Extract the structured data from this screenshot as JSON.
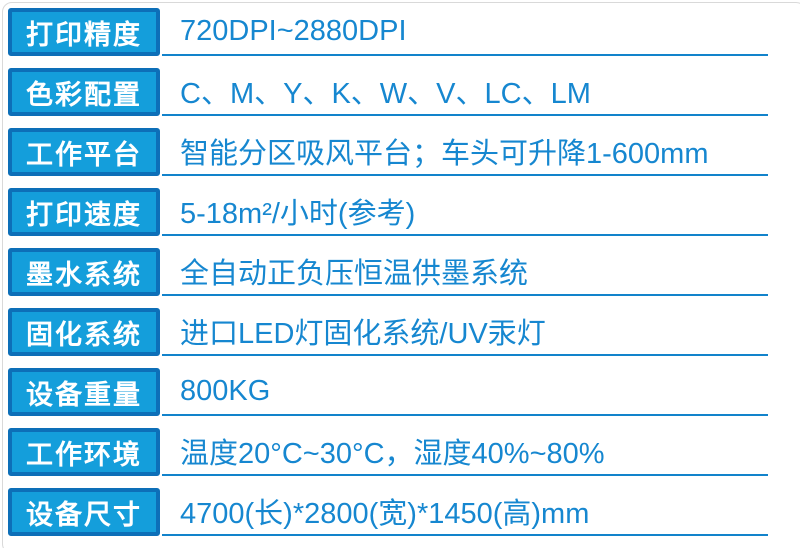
{
  "title": "printer-specification-table",
  "colors": {
    "label_border": "#0d6fb8",
    "label_fill": "#149edb",
    "label_text": "#ffffff",
    "value_text": "#1687d0",
    "underline": "#1283cb",
    "frame_border": "#d9d9d9"
  },
  "rows": [
    {
      "label": "打印精度",
      "value": "720DPI~2880DPI"
    },
    {
      "label": "色彩配置",
      "value": "C、M、Y、K、W、V、LC、LM"
    },
    {
      "label": "工作平台",
      "value": "智能分区吸风平台；车头可升降1-600mm"
    },
    {
      "label": "打印速度",
      "value": "5-18m²/小时(参考)"
    },
    {
      "label": "墨水系统",
      "value": "全自动正负压恒温供墨系统"
    },
    {
      "label": "固化系统",
      "value": "进口LED灯固化系统/UV汞灯"
    },
    {
      "label": "设备重量",
      "value": "800KG"
    },
    {
      "label": "工作环境",
      "value": "温度20°C~30°C，湿度40%~80%"
    },
    {
      "label": "设备尺寸",
      "value": "4700(长)*2800(宽)*1450(高)mm"
    }
  ]
}
